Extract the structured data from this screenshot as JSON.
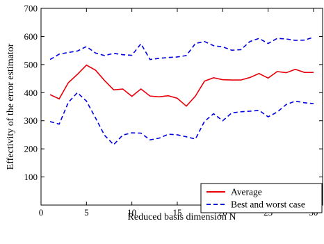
{
  "chart_data": {
    "type": "line",
    "xlabel": "Reduced basis dimension N",
    "ylabel": "Effectivity of the error estimator",
    "xlim": [
      0,
      31
    ],
    "ylim": [
      0,
      700
    ],
    "xticks": [
      0,
      5,
      10,
      15,
      20,
      25,
      30
    ],
    "yticks": [
      100,
      200,
      300,
      400,
      500,
      600,
      700
    ],
    "legend": "bottom-right",
    "grid": false,
    "x": [
      1,
      2,
      3,
      4,
      5,
      6,
      7,
      8,
      9,
      10,
      11,
      12,
      13,
      14,
      15,
      16,
      17,
      18,
      19,
      20,
      21,
      22,
      23,
      24,
      25,
      26,
      27,
      28,
      29,
      30
    ],
    "series": [
      {
        "name": "Average",
        "color": "#e8000b",
        "style": "solid",
        "values": [
          393,
          378,
          435,
          465,
          498,
          480,
          443,
          410,
          413,
          387,
          413,
          388,
          385,
          389,
          380,
          352,
          388,
          441,
          453,
          446,
          445,
          445,
          454,
          468,
          452,
          475,
          471,
          483,
          472,
          472
        ]
      },
      {
        "name": "Best and worst case",
        "color": "#0000e0",
        "style": "dashed",
        "values_upper": [
          518,
          537,
          543,
          548,
          564,
          541,
          532,
          540,
          535,
          533,
          574,
          518,
          522,
          525,
          527,
          532,
          575,
          582,
          567,
          563,
          551,
          553,
          582,
          593,
          575,
          593,
          591,
          586,
          587,
          597
        ],
        "values_lower": [
          297,
          288,
          365,
          400,
          370,
          310,
          248,
          215,
          249,
          257,
          256,
          232,
          238,
          252,
          250,
          243,
          235,
          298,
          325,
          300,
          328,
          332,
          334,
          337,
          314,
          331,
          358,
          370,
          364,
          361
        ]
      }
    ]
  }
}
